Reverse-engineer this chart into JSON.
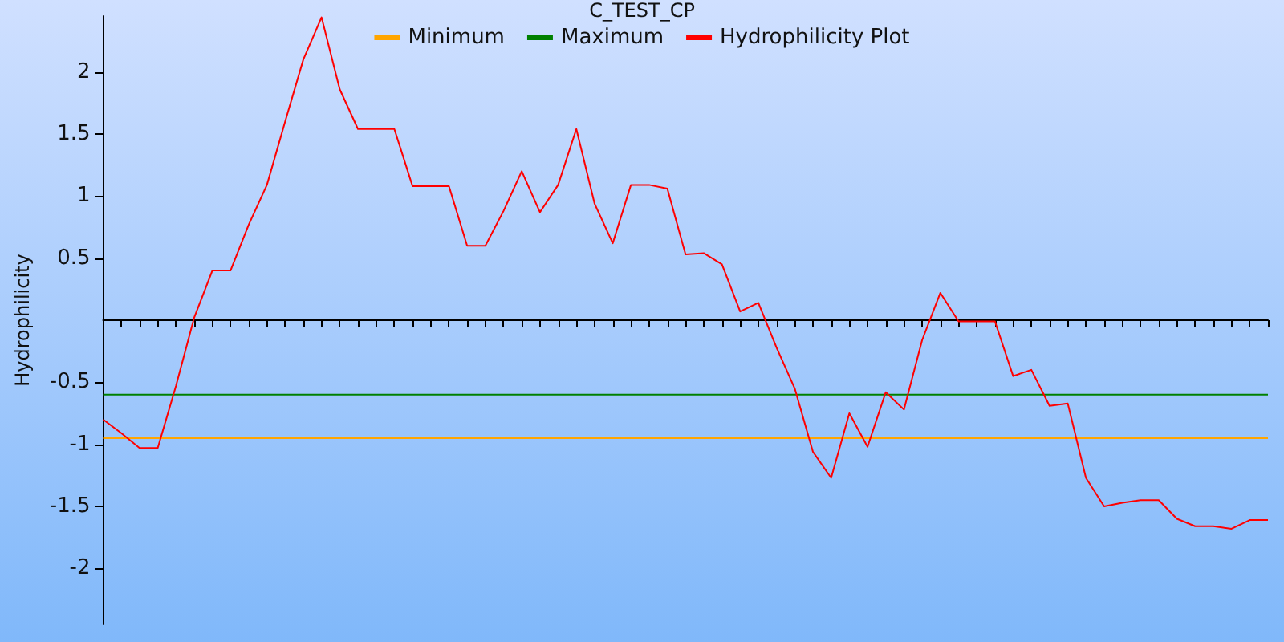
{
  "chart_data": {
    "type": "line",
    "title": "C_TEST_CP",
    "ylabel": "Hydrophilicity",
    "categories": [
      null,
      null,
      null,
      null,
      null,
      null,
      null,
      null,
      null,
      null,
      null,
      null,
      null,
      null,
      null,
      null,
      null,
      null,
      null,
      null,
      null,
      null,
      null,
      null,
      null,
      null,
      null,
      null,
      null,
      null,
      null,
      null,
      null,
      null,
      null,
      null,
      null,
      null,
      null,
      null,
      null,
      null,
      null,
      null,
      null,
      null,
      null,
      null,
      null,
      null,
      null,
      null,
      null,
      null,
      null,
      null,
      null,
      null,
      null,
      null,
      null,
      null,
      null,
      null,
      null
    ],
    "series": [
      {
        "name": "Minimum",
        "color": "#ffa500",
        "values": [
          -0.95,
          -0.95,
          -0.95,
          -0.95,
          -0.95,
          -0.95,
          -0.95,
          -0.95,
          -0.95,
          -0.95,
          -0.95,
          -0.95,
          -0.95,
          -0.95,
          -0.95,
          -0.95,
          -0.95,
          -0.95,
          -0.95,
          -0.95,
          -0.95,
          -0.95,
          -0.95,
          -0.95,
          -0.95,
          -0.95,
          -0.95,
          -0.95,
          -0.95,
          -0.95,
          -0.95,
          -0.95,
          -0.95,
          -0.95,
          -0.95,
          -0.95,
          -0.95,
          -0.95,
          -0.95,
          -0.95,
          -0.95,
          -0.95,
          -0.95,
          -0.95,
          -0.95,
          -0.95,
          -0.95,
          -0.95,
          -0.95,
          -0.95,
          -0.95,
          -0.95,
          -0.95,
          -0.95,
          -0.95,
          -0.95,
          -0.95,
          -0.95,
          -0.95,
          -0.95,
          -0.95,
          -0.95,
          -0.95,
          -0.95,
          -0.95
        ]
      },
      {
        "name": "Maximum",
        "color": "#008000",
        "values": [
          -0.6,
          -0.6,
          -0.6,
          -0.6,
          -0.6,
          -0.6,
          -0.6,
          -0.6,
          -0.6,
          -0.6,
          -0.6,
          -0.6,
          -0.6,
          -0.6,
          -0.6,
          -0.6,
          -0.6,
          -0.6,
          -0.6,
          -0.6,
          -0.6,
          -0.6,
          -0.6,
          -0.6,
          -0.6,
          -0.6,
          -0.6,
          -0.6,
          -0.6,
          -0.6,
          -0.6,
          -0.6,
          -0.6,
          -0.6,
          -0.6,
          -0.6,
          -0.6,
          -0.6,
          -0.6,
          -0.6,
          -0.6,
          -0.6,
          -0.6,
          -0.6,
          -0.6,
          -0.6,
          -0.6,
          -0.6,
          -0.6,
          -0.6,
          -0.6,
          -0.6,
          -0.6,
          -0.6,
          -0.6,
          -0.6,
          -0.6,
          -0.6,
          -0.6,
          -0.6,
          -0.6,
          -0.6,
          -0.6,
          -0.6,
          -0.6
        ]
      },
      {
        "name": "Hydrophilicity Plot",
        "color": "#ff0000",
        "values": [
          -0.8,
          -0.91,
          -1.03,
          -1.03,
          -0.53,
          0.02,
          0.4,
          0.4,
          0.77,
          1.09,
          1.6,
          2.1,
          2.44,
          1.86,
          1.54,
          1.54,
          1.54,
          1.08,
          1.08,
          1.08,
          0.6,
          0.6,
          0.88,
          1.2,
          0.87,
          1.09,
          1.54,
          0.94,
          0.62,
          1.09,
          1.09,
          1.06,
          0.53,
          0.54,
          0.45,
          0.07,
          0.14,
          -0.22,
          -0.55,
          -1.06,
          -1.27,
          -0.75,
          -1.02,
          -0.58,
          -0.72,
          -0.16,
          0.22,
          -0.01,
          -0.01,
          -0.01,
          -0.45,
          -0.4,
          -0.69,
          -0.67,
          -1.27,
          -1.5,
          -1.47,
          -1.45,
          -1.45,
          -1.6,
          -1.66,
          -1.66,
          -1.68,
          -1.61,
          -1.61
        ]
      }
    ],
    "ylim": [
      -2.45,
      2.45
    ],
    "yticks": [
      -2,
      -1.5,
      -1,
      -0.5,
      0.5,
      1,
      1.5,
      2
    ],
    "tick_labels": "y",
    "legend": "top",
    "marker": "none",
    "grid": false,
    "line_style": "solid"
  }
}
